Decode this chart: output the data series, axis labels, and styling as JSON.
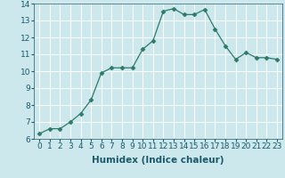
{
  "x": [
    0,
    1,
    2,
    3,
    4,
    5,
    6,
    7,
    8,
    9,
    10,
    11,
    12,
    13,
    14,
    15,
    16,
    17,
    18,
    19,
    20,
    21,
    22,
    23
  ],
  "y": [
    6.3,
    6.6,
    6.6,
    7.0,
    7.5,
    8.3,
    9.9,
    10.2,
    10.2,
    10.2,
    11.3,
    11.8,
    13.55,
    13.7,
    13.35,
    13.35,
    13.65,
    12.5,
    11.5,
    10.7,
    11.1,
    10.8,
    10.8,
    10.7
  ],
  "line_color": "#2d7a6b",
  "marker": "D",
  "marker_size": 2.5,
  "bg_color": "#cce8ec",
  "grid_color": "#ffffff",
  "xlabel": "Humidex (Indice chaleur)",
  "ylim": [
    6,
    14
  ],
  "xlim": [
    -0.5,
    23.5
  ],
  "yticks": [
    6,
    7,
    8,
    9,
    10,
    11,
    12,
    13,
    14
  ],
  "xticks": [
    0,
    1,
    2,
    3,
    4,
    5,
    6,
    7,
    8,
    9,
    10,
    11,
    12,
    13,
    14,
    15,
    16,
    17,
    18,
    19,
    20,
    21,
    22,
    23
  ],
  "xlabel_fontsize": 7.5,
  "tick_fontsize": 6.5
}
